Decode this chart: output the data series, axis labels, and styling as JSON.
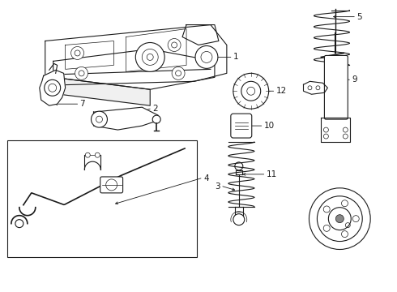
{
  "bg_color": "#ffffff",
  "line_color": "#1a1a1a",
  "label_color": "#000000",
  "font_size": 7.5,
  "lw_main": 0.8,
  "lw_thin": 0.5,
  "lw_thick": 1.2
}
